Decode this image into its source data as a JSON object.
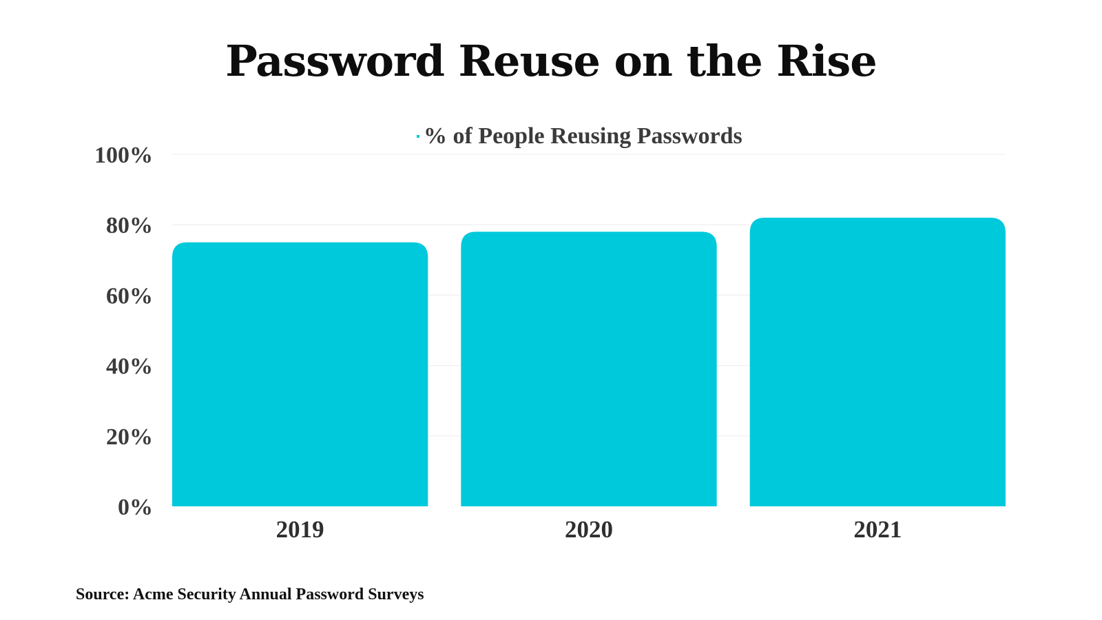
{
  "chart_data": {
    "type": "bar",
    "title": "Password Reuse on the Rise",
    "categories": [
      "2019",
      "2020",
      "2021"
    ],
    "series": [
      {
        "name": "% of People Reusing Passwords",
        "values": [
          75,
          78,
          82
        ],
        "color": "#00C9DB"
      }
    ],
    "y_ticks": [
      "0%",
      "20%",
      "40%",
      "60%",
      "80%",
      "100%"
    ],
    "ylim": [
      0,
      100
    ],
    "grid": true,
    "legend_position": "top",
    "source": "Source: Acme Security Annual Password Surveys"
  }
}
